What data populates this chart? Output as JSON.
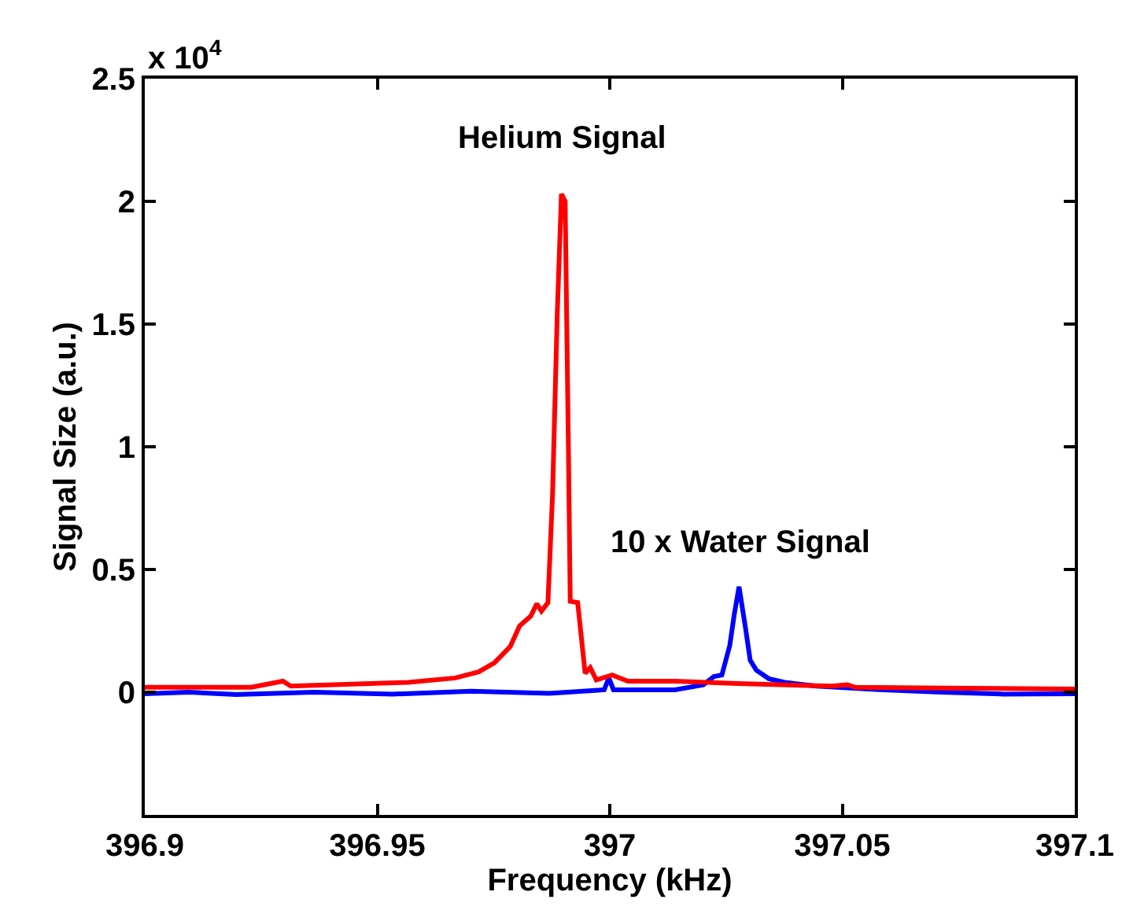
{
  "chart_data": {
    "type": "line",
    "xlabel": "Frequency (kHz)",
    "ylabel": "Signal Size (a.u.)",
    "xlim": [
      396.9,
      397.1
    ],
    "xticks": [
      396.9,
      396.95,
      397,
      397.05,
      397.1
    ],
    "ylim": [
      -0.5,
      2.5
    ],
    "yticks": [
      0,
      0.5,
      1,
      1.5,
      2,
      2.5
    ],
    "marker": "none",
    "line_style": "solid",
    "annotations": [
      "x 10$^{4}$",
      "Helium Signal",
      "10 x Water Signal"
    ],
    "series": [
      {
        "color": "#0000ff",
        "x": [
          396.9,
          396.9094,
          396.9196,
          396.9364,
          396.9533,
          396.9702,
          396.987,
          396.9988,
          396.9998,
          397.0008,
          397.014,
          397.0201,
          397.0224,
          397.0241,
          397.0258,
          397.0268,
          397.0278,
          397.0292,
          397.0302,
          397.0315,
          397.0342,
          397.0376,
          397.0444,
          397.0578,
          397.0713,
          397.0848,
          397.1
        ],
        "values": [
          -0.006,
          0.0,
          -0.01,
          0.0,
          -0.008,
          0.004,
          -0.005,
          0.01,
          0.058,
          0.01,
          0.01,
          0.03,
          0.064,
          0.07,
          0.19,
          0.32,
          0.43,
          0.26,
          0.13,
          0.09,
          0.055,
          0.04,
          0.025,
          0.01,
          0.0,
          -0.008,
          -0.006
        ]
      },
      {
        "color": "#ff0000",
        "x": [
          396.9,
          396.9229,
          396.9297,
          396.9314,
          396.9567,
          396.9668,
          396.9718,
          396.9752,
          396.9786,
          396.9806,
          396.983,
          396.9843,
          396.9853,
          396.9867,
          396.9877,
          396.9887,
          396.9896,
          396.9904,
          396.9911,
          396.9915,
          396.9931,
          396.9947,
          396.9958,
          396.9971,
          397.0005,
          397.0039,
          397.014,
          397.0275,
          397.0477,
          397.0511,
          397.0528,
          397.0713,
          397.1
        ],
        "values": [
          0.02,
          0.02,
          0.045,
          0.025,
          0.04,
          0.058,
          0.083,
          0.12,
          0.186,
          0.27,
          0.31,
          0.36,
          0.33,
          0.365,
          0.81,
          1.54,
          2.03,
          2.0,
          1.0,
          0.37,
          0.365,
          0.077,
          0.1,
          0.05,
          0.07,
          0.045,
          0.045,
          0.035,
          0.025,
          0.03,
          0.02,
          0.017,
          0.013
        ]
      }
    ]
  }
}
